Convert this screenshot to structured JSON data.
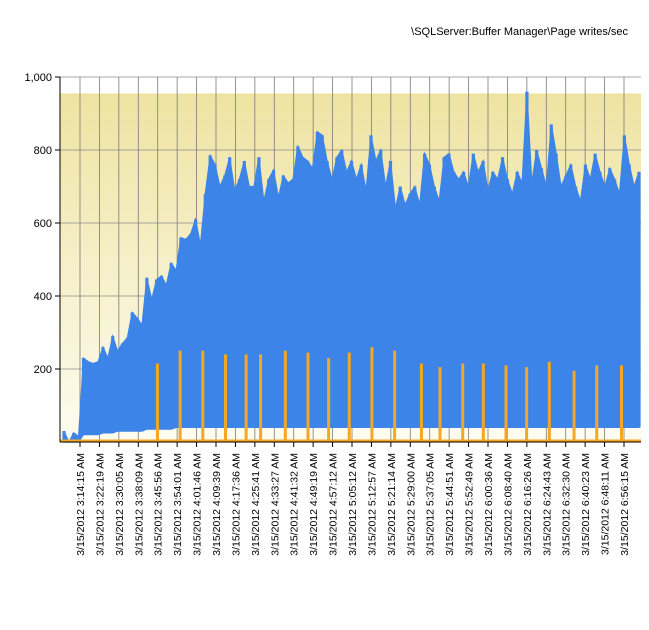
{
  "chart_data": {
    "type": "area",
    "title": "\\SQLServer:Buffer Manager\\Page writes/sec",
    "xlabel": "",
    "ylabel": "",
    "ylim": [
      0,
      1000
    ],
    "yticks": [
      {
        "value": 200,
        "label": "200"
      },
      {
        "value": 400,
        "label": "400"
      },
      {
        "value": 600,
        "label": "600"
      },
      {
        "value": 800,
        "label": "800"
      },
      {
        "value": 1000,
        "label": "1,000"
      }
    ],
    "grid": true,
    "legend": "none",
    "threshold_band_max": 955,
    "x_tick_labels": [
      "3/15/2012 3:14:15 AM",
      "3/15/2012 3:22:19 AM",
      "3/15/2012 3:30:05 AM",
      "3/15/2012 3:38:09 AM",
      "3/15/2012 3:45:56 AM",
      "3/15/2012 3:54:01 AM",
      "3/15/2012 4:01:46 AM",
      "3/15/2012 4:09:39 AM",
      "3/15/2012 4:17:36 AM",
      "3/15/2012 4:25:41 AM",
      "3/15/2012 4:33:27 AM",
      "3/15/2012 4:41:32 AM",
      "3/15/2012 4:49:19 AM",
      "3/15/2012 4:57:12 AM",
      "3/15/2012 5:05:12 AM",
      "3/15/2012 5:12:57 AM",
      "3/15/2012 5:21:14 AM",
      "3/15/2012 5:29:00 AM",
      "3/15/2012 5:37:05 AM",
      "3/15/2012 5:44:51 AM",
      "3/15/2012 5:52:49 AM",
      "3/15/2012 6:00:36 AM",
      "3/15/2012 6:08:40 AM",
      "3/15/2012 6:16:26 AM",
      "3/15/2012 6:24:43 AM",
      "3/15/2012 6:32:30 AM",
      "3/15/2012 6:40:23 AM",
      "3/15/2012 6:48:11 AM",
      "3/15/2012 6:56:15 AM"
    ],
    "series": [
      {
        "color": "#3d84e8",
        "style": "filled high-low envelope",
        "peaks": [
          30,
          0,
          25,
          15,
          230,
          220,
          215,
          220,
          260,
          230,
          290,
          250,
          270,
          285,
          355,
          340,
          320,
          450,
          390,
          445,
          455,
          430,
          490,
          470,
          560,
          555,
          570,
          610,
          540,
          680,
          785,
          760,
          700,
          730,
          780,
          690,
          720,
          770,
          700,
          700,
          780,
          660,
          720,
          745,
          670,
          730,
          710,
          720,
          810,
          780,
          770,
          750,
          850,
          840,
          770,
          720,
          780,
          800,
          740,
          770,
          720,
          760,
          690,
          840,
          770,
          800,
          700,
          770,
          640,
          700,
          650,
          680,
          700,
          650,
          790,
          760,
          700,
          660,
          780,
          790,
          740,
          720,
          740,
          700,
          790,
          740,
          770,
          690,
          740,
          720,
          780,
          720,
          680,
          740,
          710,
          960,
          710,
          800,
          750,
          700,
          870,
          790,
          700,
          730,
          760,
          700,
          660,
          760,
          720,
          790,
          740,
          700,
          750,
          720,
          680,
          840,
          760,
          700,
          740
        ],
        "troughs": [
          0,
          0,
          0,
          0,
          20,
          20,
          20,
          20,
          25,
          25,
          25,
          30,
          30,
          30,
          30,
          30,
          30,
          35,
          35,
          35,
          35,
          35,
          35,
          40,
          40,
          40,
          40,
          40,
          40,
          40,
          40,
          40,
          40,
          40,
          40,
          40,
          40,
          40,
          40,
          40,
          40,
          40,
          40,
          40,
          40,
          40,
          40,
          40,
          40,
          40,
          40,
          40,
          40,
          40,
          40,
          40,
          40,
          40,
          40,
          40,
          40,
          40,
          40,
          40,
          40,
          40,
          40,
          40,
          40,
          40,
          40,
          40,
          40,
          40,
          40,
          40,
          40,
          40,
          40,
          40,
          40,
          40,
          40,
          40,
          40,
          40,
          40,
          40,
          40,
          40,
          40,
          40,
          40,
          40,
          40,
          40,
          40,
          40,
          40,
          40,
          40,
          40,
          40,
          40,
          40,
          40,
          40,
          40,
          40,
          40,
          40,
          40,
          40,
          40,
          40,
          40,
          40,
          40,
          40
        ]
      },
      {
        "color": "#f5a623",
        "style": "spikes",
        "spikes": [
          {
            "x": 0.195,
            "y": 215
          },
          {
            "x": 0.25,
            "y": 250
          },
          {
            "x": 0.305,
            "y": 250
          },
          {
            "x": 0.36,
            "y": 240
          },
          {
            "x": 0.41,
            "y": 240
          },
          {
            "x": 0.445,
            "y": 240
          },
          {
            "x": 0.505,
            "y": 250
          },
          {
            "x": 0.56,
            "y": 245
          },
          {
            "x": 0.61,
            "y": 230
          },
          {
            "x": 0.66,
            "y": 245
          },
          {
            "x": 0.715,
            "y": 260
          },
          {
            "x": 0.77,
            "y": 250
          },
          {
            "x": 0.835,
            "y": 215
          },
          {
            "x": 0.88,
            "y": 205
          },
          {
            "x": 0.935,
            "y": 215
          },
          {
            "x": 0.985,
            "y": 215
          },
          {
            "x": 1.04,
            "y": 210
          },
          {
            "x": 1.09,
            "y": 205
          },
          {
            "x": 1.145,
            "y": 220
          },
          {
            "x": 1.205,
            "y": 195
          },
          {
            "x": 1.26,
            "y": 210
          },
          {
            "x": 1.32,
            "y": 210
          }
        ]
      }
    ]
  }
}
